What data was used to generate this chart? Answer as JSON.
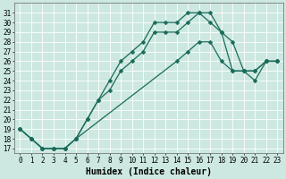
{
  "xlabel": "Humidex (Indice chaleur)",
  "background_color": "#cce8e0",
  "grid_color": "#ffffff",
  "line_color": "#1a6b5a",
  "xlim": [
    -0.5,
    23.5
  ],
  "ylim": [
    16.5,
    32.0
  ],
  "yticks": [
    17,
    18,
    19,
    20,
    21,
    22,
    23,
    24,
    25,
    26,
    27,
    28,
    29,
    30,
    31
  ],
  "xticks": [
    0,
    1,
    2,
    3,
    4,
    5,
    6,
    7,
    8,
    9,
    10,
    11,
    12,
    13,
    14,
    15,
    16,
    17,
    18,
    19,
    20,
    21,
    22,
    23
  ],
  "curve1_x": [
    0,
    1,
    2,
    3,
    4,
    5,
    6,
    7,
    8,
    9,
    10,
    11,
    12,
    13,
    14,
    15,
    16,
    17,
    18,
    19,
    20,
    21,
    22,
    23
  ],
  "curve1_y": [
    19,
    18,
    17,
    17,
    17,
    18,
    20,
    22,
    24,
    26,
    27,
    28,
    30,
    30,
    30,
    31,
    31,
    31,
    29,
    28,
    25,
    25,
    26,
    26
  ],
  "curve2_x": [
    0,
    1,
    2,
    3,
    4,
    5,
    6,
    7,
    8,
    9,
    10,
    11,
    12,
    13,
    14,
    15,
    16,
    17,
    18,
    19,
    20,
    21,
    22,
    23
  ],
  "curve2_y": [
    19,
    18,
    17,
    17,
    17,
    18,
    20,
    22,
    23,
    25,
    26,
    27,
    29,
    29,
    29,
    30,
    31,
    30,
    29,
    25,
    25,
    25,
    26,
    26
  ],
  "curve3_x": [
    0,
    1,
    2,
    3,
    4,
    5,
    14,
    15,
    16,
    17,
    18,
    19,
    20,
    21,
    22,
    23
  ],
  "curve3_y": [
    19,
    18,
    17,
    17,
    17,
    18,
    26,
    27,
    28,
    28,
    26,
    25,
    25,
    24,
    26,
    26
  ],
  "markersize": 2.5,
  "linewidth": 0.9,
  "xlabel_fontsize": 7,
  "tick_fontsize": 5.5
}
